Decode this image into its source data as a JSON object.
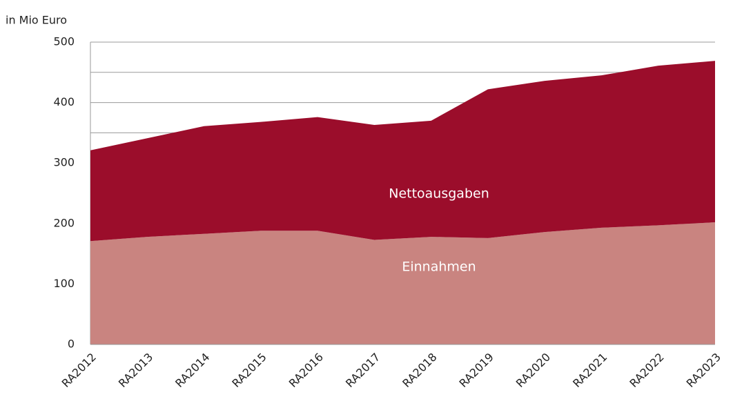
{
  "chart_data": {
    "type": "stacked_area",
    "y_label": "in Mio Euro",
    "categories": [
      "RA2012",
      "RA2013",
      "RA2014",
      "RA2015",
      "RA2016",
      "RA2017",
      "RA2018",
      "RA2019",
      "RA2020",
      "RA2021",
      "RA2022",
      "RA2023"
    ],
    "series": [
      {
        "name": "Einnahmen",
        "color": "#c98480",
        "values": [
          171,
          178,
          183,
          188,
          188,
          173,
          178,
          176,
          186,
          193,
          197,
          202
        ]
      },
      {
        "name": "Nettoausgaben",
        "color": "#9b0d2b",
        "values": [
          150,
          163,
          178,
          180,
          188,
          190,
          192,
          246,
          250,
          252,
          264,
          267
        ]
      }
    ],
    "ylim": [
      0,
      500
    ],
    "yticks": [
      0,
      100,
      200,
      300,
      400,
      500
    ],
    "minor_gridlines": [
      50,
      150,
      250,
      350,
      450
    ],
    "grid": true
  }
}
